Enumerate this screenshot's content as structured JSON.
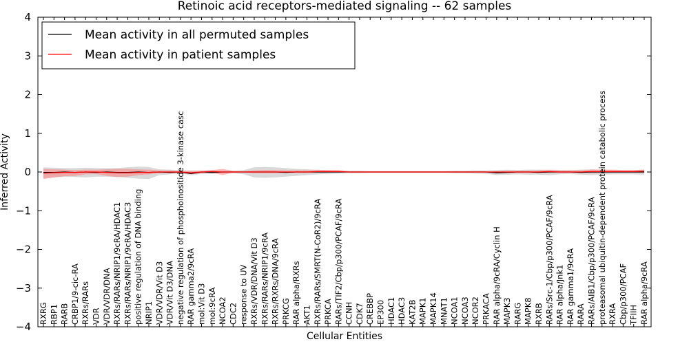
{
  "chart_data": {
    "type": "line",
    "title": "Retinoic acid receptors-mediated signaling -- 62 samples",
    "xlabel": "Cellular Entities",
    "ylabel": "Inferred Activity",
    "ylim": [
      -4,
      4
    ],
    "yticks": [
      "−4",
      "−3",
      "−2",
      "−1",
      "0",
      "1",
      "2",
      "3",
      "4"
    ],
    "grid": false,
    "legend": {
      "placement": "top-left",
      "entries": [
        {
          "label": "Mean activity in all permuted samples",
          "color": "#000000"
        },
        {
          "label": "Mean activity in patient samples",
          "color": "#ff0000"
        }
      ]
    },
    "categories": [
      "RXRG",
      "RBP1",
      "RARB",
      "CRBP1/9-cic-RA",
      "RXRs/RARs",
      "VDR",
      "VDR/VDR/DNA",
      "RXRs/RARs/NRIP1/9cRA/HDAC1",
      "RXRs/RARs/NRIP1/9cRA/HDAC3",
      "positive regulation of DNA binding",
      "NRIP1",
      "VDR/VDR/Vit D3",
      "VDR/Vit D3/DNA",
      "negative regulation of phosphoinositide 3-kinase casc",
      "RAR gamma2/9cRA",
      "mol:Vit D3",
      "mol:9cRA",
      "NCOA2",
      "CDC2",
      "response to UV",
      "RXRs/VDR/DNA/Vit D3",
      "RXRs/RARs/NRIP1/9cRA",
      "RXRs/RXRs/DNA/9cRA",
      "PRKCG",
      "RAR alpha/RXRs",
      "AKT1",
      "RXRs/RARs/SMRT(N-CoR2)/9cRA",
      "PRKCA",
      "RARs/TIF2/Cbp/p300/PCAF/9cRA",
      "CCNH",
      "CDK7",
      "CREBBP",
      "EP300",
      "HDAC1",
      "HDAC3",
      "KAT2B",
      "MAPK1",
      "MAPK14",
      "MNAT1",
      "NCOA1",
      "NCOA3",
      "NCOR2",
      "PRKACA",
      "RAR alpha/9cRA/Cyclin H",
      "MAPK3",
      "RARG",
      "MAPK8",
      "RXRB",
      "RARs/Src-1/Cbp/p300/PCAF/9cRA",
      "RAR alpha/Jnk1",
      "RAR gamma1/9cRA",
      "RARA",
      "RARs/AIB1/Cbp/p300/PCAF/9cRA",
      "proteasomal ubiquitin-dependent protein catabolic process",
      "RXRA",
      "Cbp/p300/PCAF",
      "TFIIH",
      "RAR alpha/9cRA"
    ],
    "series": [
      {
        "name": "Mean activity in all permuted samples",
        "color": "#000000",
        "band_color": "#aaaaaa",
        "mean": [
          -0.01,
          -0.01,
          0,
          -0.01,
          0,
          -0.01,
          0,
          -0.01,
          -0.01,
          0,
          -0.01,
          0,
          -0.01,
          0,
          -0.04,
          0,
          -0.01,
          0,
          0,
          0,
          0,
          0,
          0,
          -0.01,
          0,
          0,
          0,
          0,
          0,
          0,
          0,
          0,
          0,
          0,
          0,
          0,
          0,
          0,
          0,
          0,
          0,
          0,
          0,
          -0.02,
          -0.01,
          0,
          0,
          -0.01,
          0,
          0,
          0,
          -0.01,
          0,
          0,
          0,
          0,
          0,
          0
        ],
        "lower": [
          -0.16,
          -0.14,
          -0.12,
          -0.13,
          -0.14,
          -0.12,
          -0.12,
          -0.13,
          -0.15,
          -0.17,
          -0.18,
          -0.08,
          -0.06,
          -0.04,
          -0.08,
          -0.05,
          -0.05,
          -0.03,
          -0.03,
          -0.06,
          -0.14,
          -0.15,
          -0.14,
          -0.12,
          -0.1,
          -0.08,
          -0.06,
          -0.05,
          -0.04,
          -0.03,
          -0.03,
          -0.02,
          -0.02,
          -0.02,
          -0.02,
          -0.02,
          -0.02,
          -0.02,
          -0.02,
          -0.03,
          -0.03,
          -0.04,
          -0.05,
          -0.08,
          -0.07,
          -0.06,
          -0.07,
          -0.07,
          -0.08,
          -0.06,
          -0.05,
          -0.07,
          -0.08,
          -0.07,
          -0.06,
          -0.06,
          -0.06,
          -0.07
        ],
        "upper": [
          0.12,
          0.11,
          0.1,
          0.1,
          0.11,
          0.1,
          0.1,
          0.1,
          0.12,
          0.14,
          0.13,
          0.07,
          0.06,
          0.04,
          0.04,
          0.04,
          0.05,
          0.03,
          0.03,
          0.05,
          0.12,
          0.13,
          0.12,
          0.1,
          0.08,
          0.07,
          0.06,
          0.05,
          0.04,
          0.03,
          0.03,
          0.02,
          0.02,
          0.02,
          0.02,
          0.02,
          0.02,
          0.02,
          0.02,
          0.03,
          0.03,
          0.04,
          0.04,
          0.05,
          0.06,
          0.05,
          0.06,
          0.06,
          0.06,
          0.05,
          0.05,
          0.06,
          0.07,
          0.06,
          0.05,
          0.05,
          0.05,
          0.06
        ]
      },
      {
        "name": "Mean activity in patient samples",
        "color": "#ff0000",
        "band_color": "#ff8080",
        "mean": [
          -0.03,
          -0.02,
          -0.01,
          -0.01,
          0,
          0,
          -0.01,
          -0.02,
          -0.02,
          -0.01,
          -0.01,
          0,
          0,
          0,
          -0.02,
          0,
          0.01,
          0,
          0,
          0,
          0,
          0,
          0,
          0,
          0,
          0,
          0.01,
          0.01,
          0.01,
          0,
          0,
          0,
          0,
          0,
          0,
          0,
          0,
          0,
          0,
          0,
          0,
          0,
          0,
          0,
          0,
          0,
          0,
          0,
          0.01,
          0,
          0,
          0,
          0.01,
          0.01,
          0.01,
          0.01,
          0.01,
          0.02
        ],
        "lower": [
          -0.18,
          -0.14,
          -0.11,
          -0.1,
          -0.06,
          -0.05,
          -0.1,
          -0.13,
          -0.12,
          -0.08,
          -0.06,
          -0.03,
          -0.03,
          -0.02,
          -0.06,
          -0.03,
          -0.02,
          -0.08,
          -0.02,
          -0.01,
          -0.03,
          -0.03,
          -0.03,
          -0.02,
          -0.02,
          -0.02,
          -0.02,
          -0.02,
          -0.02,
          -0.01,
          -0.01,
          -0.01,
          -0.01,
          -0.01,
          -0.01,
          -0.01,
          -0.01,
          -0.01,
          -0.01,
          -0.01,
          -0.01,
          -0.01,
          -0.01,
          -0.02,
          -0.02,
          -0.02,
          -0.02,
          -0.02,
          -0.02,
          -0.02,
          -0.02,
          -0.02,
          -0.03,
          -0.03,
          -0.02,
          -0.02,
          -0.02,
          -0.02
        ],
        "upper": [
          0.08,
          0.07,
          0.06,
          0.05,
          0.06,
          0.06,
          0.07,
          0.08,
          0.08,
          0.07,
          0.06,
          0.04,
          0.04,
          0.03,
          0.03,
          0.03,
          0.05,
          0.08,
          0.03,
          0.02,
          0.04,
          0.05,
          0.05,
          0.04,
          0.04,
          0.04,
          0.05,
          0.05,
          0.05,
          0.02,
          0.02,
          0.02,
          0.02,
          0.02,
          0.02,
          0.02,
          0.02,
          0.02,
          0.02,
          0.02,
          0.02,
          0.02,
          0.02,
          0.02,
          0.03,
          0.03,
          0.03,
          0.04,
          0.05,
          0.04,
          0.04,
          0.04,
          0.06,
          0.06,
          0.06,
          0.05,
          0.05,
          0.06
        ]
      }
    ]
  }
}
